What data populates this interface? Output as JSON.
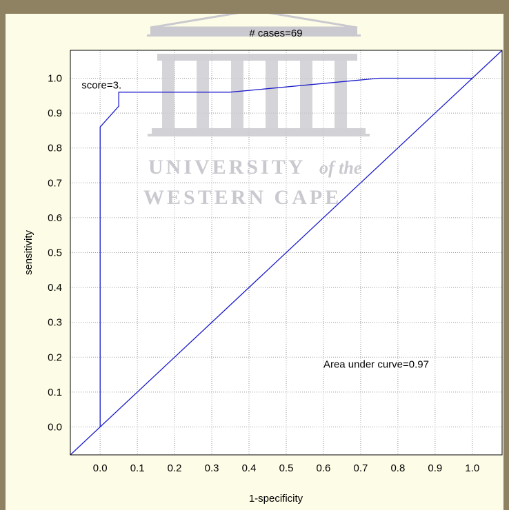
{
  "chart_data": {
    "type": "line",
    "title": "# cases=69",
    "xlabel": "1-specificity",
    "ylabel": "sensitivity",
    "xlim": [
      -0.08,
      1.08
    ],
    "ylim": [
      -0.08,
      1.08
    ],
    "x_ticks": [
      "0.0",
      "0.1",
      "0.2",
      "0.3",
      "0.4",
      "0.5",
      "0.6",
      "0.7",
      "0.8",
      "0.9",
      "1.0"
    ],
    "y_ticks": [
      "0.0",
      "0.1",
      "0.2",
      "0.3",
      "0.4",
      "0.5",
      "0.6",
      "0.7",
      "0.8",
      "0.9",
      "1.0"
    ],
    "grid": true,
    "series": [
      {
        "x": [
          0.0,
          0.0,
          0.05,
          0.05,
          0.35,
          0.75,
          1.0
        ],
        "y": [
          0.0,
          0.86,
          0.92,
          0.96,
          0.96,
          1.0,
          1.0
        ],
        "color": "#1a1acc"
      },
      {
        "x": [
          -0.08,
          1.08
        ],
        "y": [
          -0.08,
          1.08
        ],
        "color": "#1a1acc"
      }
    ],
    "annotations": [
      {
        "text": "score=3.",
        "x": -0.05,
        "y": 0.97
      },
      {
        "text": "Area under curve=0.97",
        "x": 0.6,
        "y": 0.17
      }
    ]
  },
  "watermark": {
    "line1": "UNIVERSITY",
    "line1_suffix": "of the",
    "line2": "WESTERN CAPE",
    "color": "#c9c9cf"
  }
}
